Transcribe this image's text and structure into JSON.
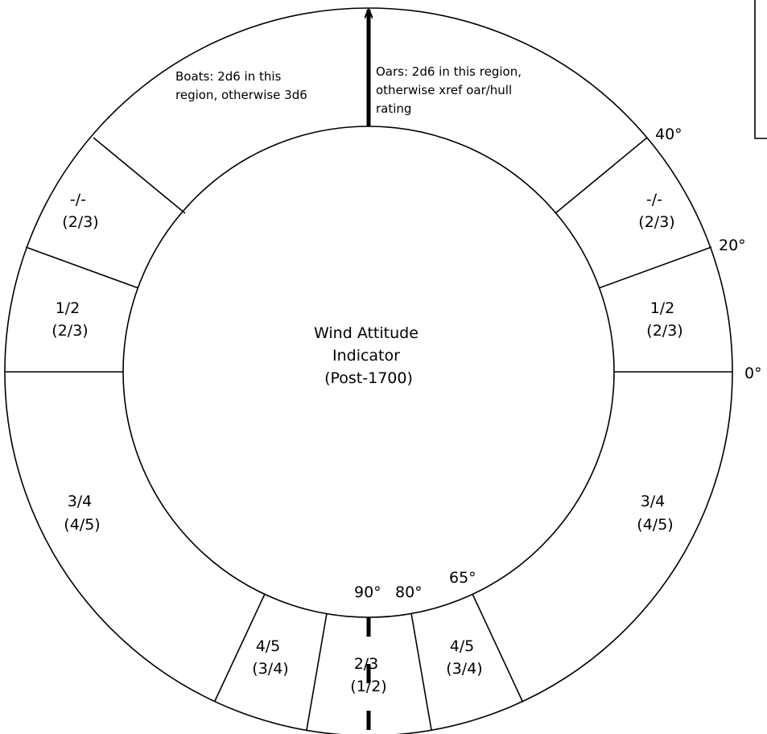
{
  "center_label": [
    "Wind Attitude",
    "Indicator",
    "(Post-1700)"
  ],
  "notes": {
    "boats": [
      "Boats: 2d6 in this",
      "region, otherwise 3d6"
    ],
    "oars": [
      "Oars: 2d6 in this region,",
      "otherwise  xref  oar/hull",
      "rating"
    ]
  },
  "angles": {
    "a40": "40°",
    "a20": "20°",
    "a0": "0°",
    "a65": "65°",
    "a80": "80°",
    "a90": "90°"
  },
  "sectors": {
    "right_20_40": [
      "-/-",
      "(2/3)"
    ],
    "right_0_20": [
      "1/2",
      "(2/3)"
    ],
    "right_0_65": [
      "3/4",
      "(4/5)"
    ],
    "right_65_80": [
      "4/5",
      "(3/4)"
    ],
    "bottom_80_80": [
      "2/3",
      "(1/2)"
    ],
    "left_65_80": [
      "4/5",
      "(3/4)"
    ],
    "left_0_65": [
      "3/4",
      "(4/5)"
    ],
    "left_0_20": [
      "1/2",
      "(2/3)"
    ],
    "left_20_40": [
      "-/-",
      "(2/3)"
    ]
  }
}
